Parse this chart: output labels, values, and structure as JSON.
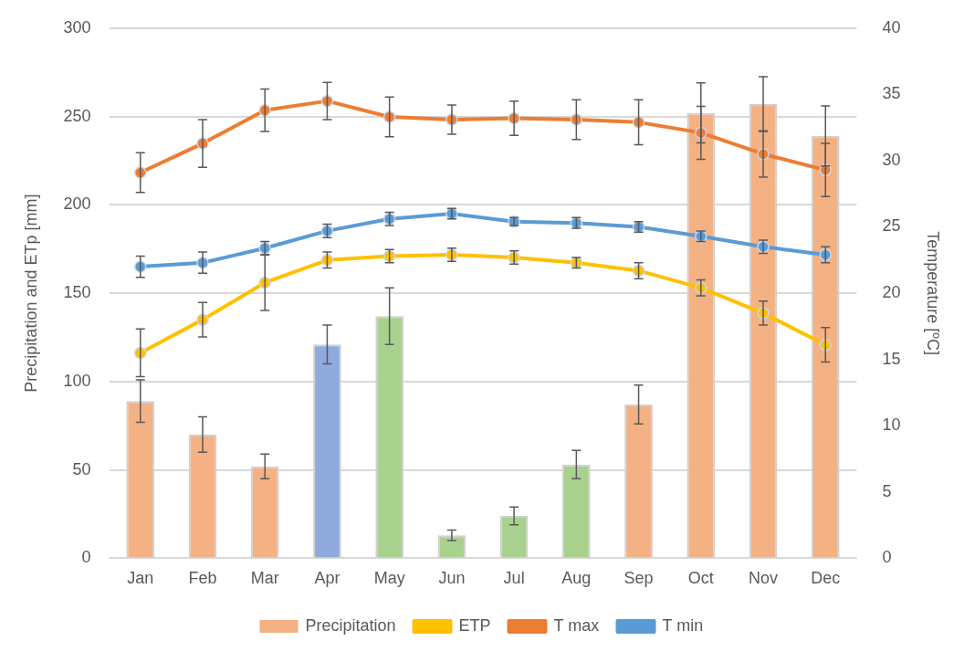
{
  "chart_data": {
    "type": "bar",
    "categories": [
      "Jan",
      "Feb",
      "Mar",
      "Apr",
      "May",
      "Jun",
      "Jul",
      "Aug",
      "Sep",
      "Oct",
      "Nov",
      "Dec"
    ],
    "ylabel": "Precipitation and ETp [mm]",
    "y2label": "Temperature [ºC]",
    "ylim": [
      0,
      300
    ],
    "yticks": [
      0,
      50,
      100,
      150,
      200,
      250,
      300
    ],
    "y2lim": [
      0,
      40
    ],
    "y2ticks": [
      0,
      5,
      10,
      15,
      20,
      25,
      30,
      35,
      40
    ],
    "grid": "y",
    "legend": "bottom",
    "marker": "circle",
    "series": [
      {
        "name": "Precipitation",
        "color": "#f4b183",
        "colors": [
          "#f4b183",
          "#f4b183",
          "#f4b183",
          "#8faadc",
          "#a9d18e",
          "#a9d18e",
          "#a9d18e",
          "#a9d18e",
          "#f4b183",
          "#f4b183",
          "#f4b183",
          "#f4b183"
        ],
        "values": [
          89,
          70,
          52,
          121,
          137,
          13,
          24,
          53,
          87,
          252,
          257,
          239
        ],
        "errors": [
          12,
          10,
          7,
          11,
          16,
          3,
          5,
          8,
          11,
          17,
          15.5,
          17
        ]
      },
      {
        "name": "ETP",
        "type": "line",
        "axis": "y2",
        "color": "#ffc000",
        "values": [
          15.5,
          18.0,
          20.8,
          22.5,
          22.8,
          22.9,
          22.7,
          22.3,
          21.7,
          20.4,
          18.5,
          16.1
        ],
        "errors": [
          1.8,
          1.3,
          2.1,
          0.6,
          0.5,
          0.5,
          0.5,
          0.4,
          0.6,
          0.6,
          0.9,
          1.3
        ]
      },
      {
        "name": "T max",
        "type": "line",
        "axis": "y2",
        "color": "#ed7d31",
        "values": [
          29.1,
          31.3,
          33.8,
          34.5,
          33.3,
          33.1,
          33.2,
          33.1,
          32.9,
          32.1,
          30.5,
          29.3
        ],
        "errors": [
          1.5,
          1.8,
          1.6,
          1.4,
          1.5,
          1.1,
          1.3,
          1.5,
          1.7,
          2.0,
          1.75,
          2.0
        ]
      },
      {
        "name": "T min",
        "type": "line",
        "axis": "y2",
        "color": "#5b9bd5",
        "values": [
          22.0,
          22.3,
          23.4,
          24.7,
          25.6,
          26.0,
          25.4,
          25.3,
          25.0,
          24.3,
          23.5,
          22.9
        ],
        "errors": [
          0.8,
          0.8,
          0.5,
          0.5,
          0.5,
          0.4,
          0.3,
          0.4,
          0.4,
          0.4,
          0.5,
          0.6
        ]
      }
    ]
  }
}
